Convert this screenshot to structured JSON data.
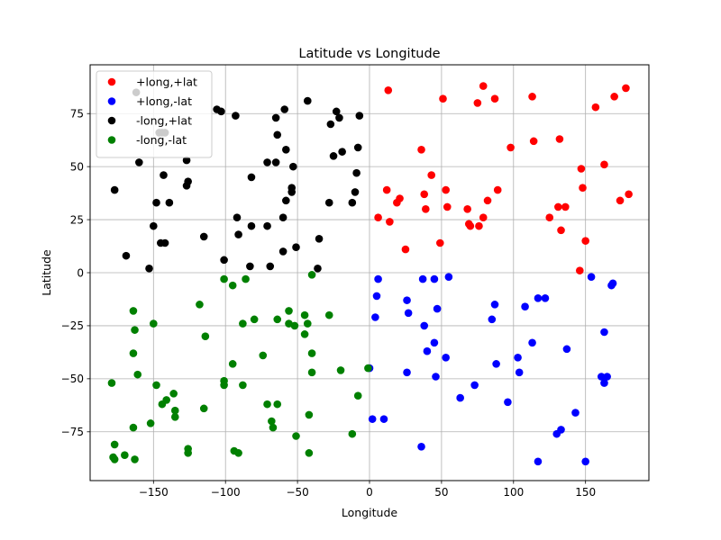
{
  "chart_data": {
    "type": "scatter",
    "title": "Latitude vs Longitude",
    "xlabel": "Longitude",
    "ylabel": "Latitude",
    "xlim": [
      -194,
      194
    ],
    "ylim": [
      -98,
      98
    ],
    "xticks": [
      -150,
      -100,
      -50,
      0,
      50,
      100,
      150
    ],
    "yticks": [
      -75,
      -50,
      -25,
      0,
      25,
      50,
      75
    ],
    "grid": true,
    "legend_position": "top-left",
    "series": [
      {
        "name": "+long,+lat",
        "color": "#ff0000",
        "points": [
          [
            13,
            86
          ],
          [
            51,
            82
          ],
          [
            79,
            88
          ],
          [
            87,
            82
          ],
          [
            75,
            80
          ],
          [
            113,
            83
          ],
          [
            157,
            78
          ],
          [
            170,
            83
          ],
          [
            178,
            87
          ],
          [
            36,
            58
          ],
          [
            43,
            46
          ],
          [
            53,
            39
          ],
          [
            98,
            59
          ],
          [
            114,
            62
          ],
          [
            132,
            63
          ],
          [
            163,
            51
          ],
          [
            147,
            49
          ],
          [
            148,
            40
          ],
          [
            12,
            39
          ],
          [
            19,
            33
          ],
          [
            21,
            35
          ],
          [
            38,
            37
          ],
          [
            39,
            30
          ],
          [
            54,
            31
          ],
          [
            68,
            30
          ],
          [
            69,
            23
          ],
          [
            70,
            22
          ],
          [
            76,
            22
          ],
          [
            79,
            26
          ],
          [
            82,
            34
          ],
          [
            89,
            39
          ],
          [
            125,
            26
          ],
          [
            131,
            31
          ],
          [
            136,
            31
          ],
          [
            174,
            34
          ],
          [
            180,
            37
          ],
          [
            6,
            26
          ],
          [
            14,
            24
          ],
          [
            25,
            11
          ],
          [
            49,
            14
          ],
          [
            133,
            20
          ],
          [
            150,
            15
          ],
          [
            146,
            1
          ]
        ]
      },
      {
        "name": "+long,-lat",
        "color": "#0000ff",
        "points": [
          [
            6,
            -3
          ],
          [
            37,
            -3
          ],
          [
            45,
            -3
          ],
          [
            55,
            -2
          ],
          [
            154,
            -2
          ],
          [
            168,
            -6
          ],
          [
            169,
            -5
          ],
          [
            5,
            -11
          ],
          [
            4,
            -21
          ],
          [
            26,
            -13
          ],
          [
            27,
            -19
          ],
          [
            47,
            -17
          ],
          [
            87,
            -15
          ],
          [
            85,
            -22
          ],
          [
            108,
            -16
          ],
          [
            117,
            -12
          ],
          [
            122,
            -12
          ],
          [
            38,
            -25
          ],
          [
            45,
            -33
          ],
          [
            40,
            -37
          ],
          [
            53,
            -40
          ],
          [
            26,
            -47
          ],
          [
            46,
            -49
          ],
          [
            113,
            -33
          ],
          [
            103,
            -40
          ],
          [
            137,
            -36
          ],
          [
            88,
            -43
          ],
          [
            104,
            -47
          ],
          [
            163,
            -28
          ],
          [
            161,
            -49
          ],
          [
            165,
            -49
          ],
          [
            163,
            -52
          ],
          [
            63,
            -59
          ],
          [
            73,
            -53
          ],
          [
            96,
            -61
          ],
          [
            0,
            -45
          ],
          [
            2,
            -69
          ],
          [
            10,
            -69
          ],
          [
            143,
            -66
          ],
          [
            130,
            -76
          ],
          [
            133,
            -74
          ],
          [
            36,
            -82
          ],
          [
            117,
            -89
          ],
          [
            150,
            -89
          ]
        ]
      },
      {
        "name": "-long,+lat",
        "color": "#000000",
        "points": [
          [
            -162,
            85
          ],
          [
            -106,
            77
          ],
          [
            -103,
            76
          ],
          [
            -93,
            74
          ],
          [
            -59,
            77
          ],
          [
            -65,
            73
          ],
          [
            -43,
            81
          ],
          [
            -23,
            76
          ],
          [
            -21,
            73
          ],
          [
            -27,
            70
          ],
          [
            -7,
            74
          ],
          [
            -146,
            66
          ],
          [
            -144,
            66
          ],
          [
            -142,
            66
          ],
          [
            -127,
            53
          ],
          [
            -160,
            52
          ],
          [
            -71,
            52
          ],
          [
            -65,
            52
          ],
          [
            -64,
            65
          ],
          [
            -58,
            58
          ],
          [
            -53,
            50
          ],
          [
            -25,
            55
          ],
          [
            -19,
            57
          ],
          [
            -8,
            59
          ],
          [
            -177,
            39
          ],
          [
            -148,
            33
          ],
          [
            -139,
            33
          ],
          [
            -126,
            43
          ],
          [
            -127,
            41
          ],
          [
            -143,
            46
          ],
          [
            -82,
            45
          ],
          [
            -54,
            40
          ],
          [
            -54,
            38
          ],
          [
            -58,
            34
          ],
          [
            -9,
            47
          ],
          [
            -10,
            38
          ],
          [
            -12,
            33
          ],
          [
            -28,
            33
          ],
          [
            -150,
            22
          ],
          [
            -145,
            14
          ],
          [
            -142,
            14
          ],
          [
            -115,
            17
          ],
          [
            -92,
            26
          ],
          [
            -82,
            22
          ],
          [
            -71,
            22
          ],
          [
            -60,
            26
          ],
          [
            -91,
            18
          ],
          [
            -169,
            8
          ],
          [
            -60,
            10
          ],
          [
            -35,
            16
          ],
          [
            -51,
            12
          ],
          [
            -153,
            2
          ],
          [
            -101,
            6
          ],
          [
            -83,
            3
          ],
          [
            -69,
            3
          ],
          [
            -36,
            2
          ]
        ]
      },
      {
        "name": "-long,-lat",
        "color": "#008000",
        "points": [
          [
            -101,
            -3
          ],
          [
            -86,
            -3
          ],
          [
            -95,
            -6
          ],
          [
            -40,
            -1
          ],
          [
            -164,
            -18
          ],
          [
            -163,
            -27
          ],
          [
            -150,
            -24
          ],
          [
            -118,
            -15
          ],
          [
            -114,
            -30
          ],
          [
            -88,
            -24
          ],
          [
            -80,
            -22
          ],
          [
            -64,
            -22
          ],
          [
            -56,
            -18
          ],
          [
            -56,
            -24
          ],
          [
            -52,
            -25
          ],
          [
            -45,
            -20
          ],
          [
            -43,
            -24
          ],
          [
            -45,
            -29
          ],
          [
            -28,
            -20
          ],
          [
            -164,
            -38
          ],
          [
            -161,
            -48
          ],
          [
            -148,
            -53
          ],
          [
            -136,
            -57
          ],
          [
            -101,
            -51
          ],
          [
            -101,
            -53
          ],
          [
            -95,
            -43
          ],
          [
            -88,
            -53
          ],
          [
            -74,
            -39
          ],
          [
            -40,
            -38
          ],
          [
            -40,
            -47
          ],
          [
            -20,
            -46
          ],
          [
            -1,
            -45
          ],
          [
            -179,
            -52
          ],
          [
            -144,
            -62
          ],
          [
            -141,
            -60
          ],
          [
            -135,
            -65
          ],
          [
            -135,
            -68
          ],
          [
            -115,
            -64
          ],
          [
            -71,
            -62
          ],
          [
            -64,
            -62
          ],
          [
            -68,
            -70
          ],
          [
            -67,
            -73
          ],
          [
            -42,
            -67
          ],
          [
            -8,
            -58
          ],
          [
            -164,
            -73
          ],
          [
            -152,
            -71
          ],
          [
            -177,
            -81
          ],
          [
            -178,
            -87
          ],
          [
            -177,
            -88
          ],
          [
            -170,
            -86
          ],
          [
            -163,
            -88
          ],
          [
            -126,
            -83
          ],
          [
            -126,
            -85
          ],
          [
            -94,
            -84
          ],
          [
            -91,
            -85
          ],
          [
            -51,
            -77
          ],
          [
            -42,
            -85
          ],
          [
            -12,
            -76
          ]
        ]
      }
    ]
  }
}
